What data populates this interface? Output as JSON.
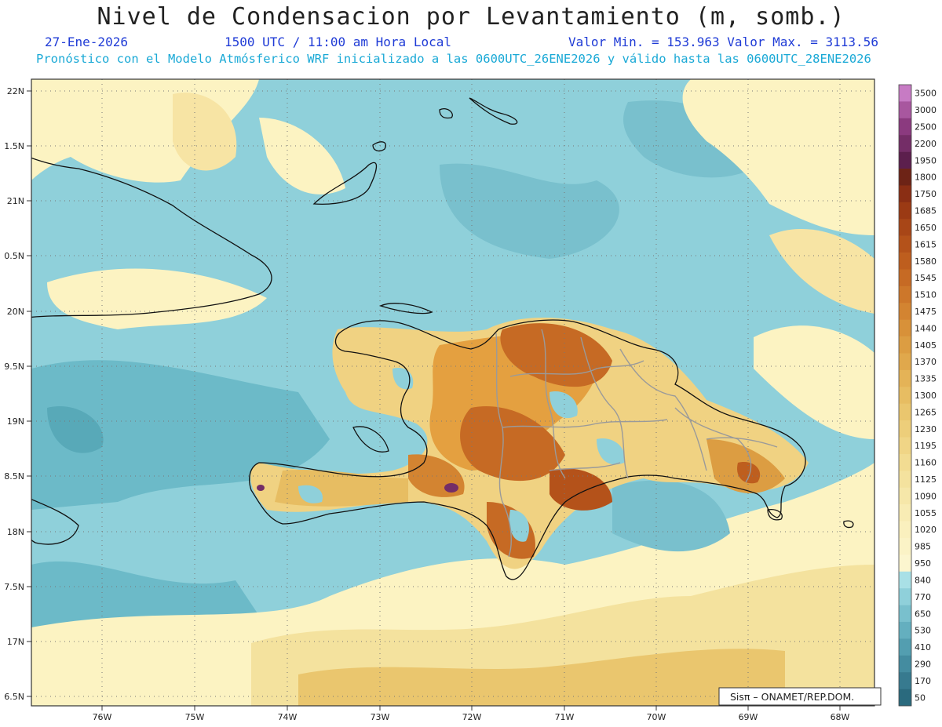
{
  "header": {
    "title": "Nivel de Condensacion por Levantamiento (m, somb.)",
    "date": "27-Ene-2026",
    "time": "1500 UTC / 11:00 am Hora Local",
    "min_max": "Valor Min. = 153.963  Valor Max. = 3113.56",
    "forecast_note": "Pronóstico con el Modelo Atmósferico WRF inicializado a las 0600UTC_26ENE2026 y válido hasta las  0600UTC_28ENE2026"
  },
  "map": {
    "lat_labels": [
      "22N",
      "1.5N",
      "21N",
      "0.5N",
      "20N",
      "9.5N",
      "19N",
      "8.5N",
      "18N",
      "7.5N",
      "17N",
      "6.5N"
    ],
    "lon_labels": [
      "76W",
      "75W",
      "74W",
      "73W",
      "72W",
      "71W",
      "70W",
      "69W",
      "68W"
    ],
    "credit": "Sisπ – ONAMET/REP.DOM."
  },
  "legend": {
    "levels": [
      "3500",
      "3000",
      "2500",
      "2200",
      "1950",
      "1800",
      "1750",
      "1685",
      "1650",
      "1615",
      "1580",
      "1545",
      "1510",
      "1475",
      "1440",
      "1405",
      "1370",
      "1335",
      "1300",
      "1265",
      "1230",
      "1195",
      "1160",
      "1125",
      "1090",
      "1055",
      "1020",
      "985",
      "950",
      "840",
      "770",
      "650",
      "530",
      "410",
      "290",
      "170",
      "50"
    ],
    "colors": [
      "#c77bc4",
      "#a8579f",
      "#8b3a7f",
      "#742d67",
      "#5c1f4d",
      "#6d2316",
      "#8a2e14",
      "#9b3a14",
      "#a84617",
      "#b4521a",
      "#be5e1e",
      "#c66a24",
      "#cd772a",
      "#d38431",
      "#d89139",
      "#dc9d42",
      "#e0a84c",
      "#e4b357",
      "#e7bd62",
      "#eac66e",
      "#edce7a",
      "#f0d586",
      "#f2dc92",
      "#f4e29e",
      "#f6e7a9",
      "#f8ecb4",
      "#faf0be",
      "#fbf3c6",
      "#fcf6cf",
      "#a9e0e6",
      "#8fd0da",
      "#79c0cd",
      "#64afbf",
      "#539eb0",
      "#448ca0",
      "#377a8f",
      "#2a6a7e"
    ]
  },
  "palette": {
    "ocean": "#8fd0da",
    "ocean_dark": "#6cbac8",
    "ocean_deep": "#58a9b8",
    "warm_light": "#fcf3c2",
    "warm": "#f0d282",
    "land_orange": "#e4a040",
    "land_brown": "#c66a24",
    "land_dark": "#8a3a12",
    "coast": "#111111",
    "border": "#9a9a9a",
    "grid": "#777777"
  }
}
